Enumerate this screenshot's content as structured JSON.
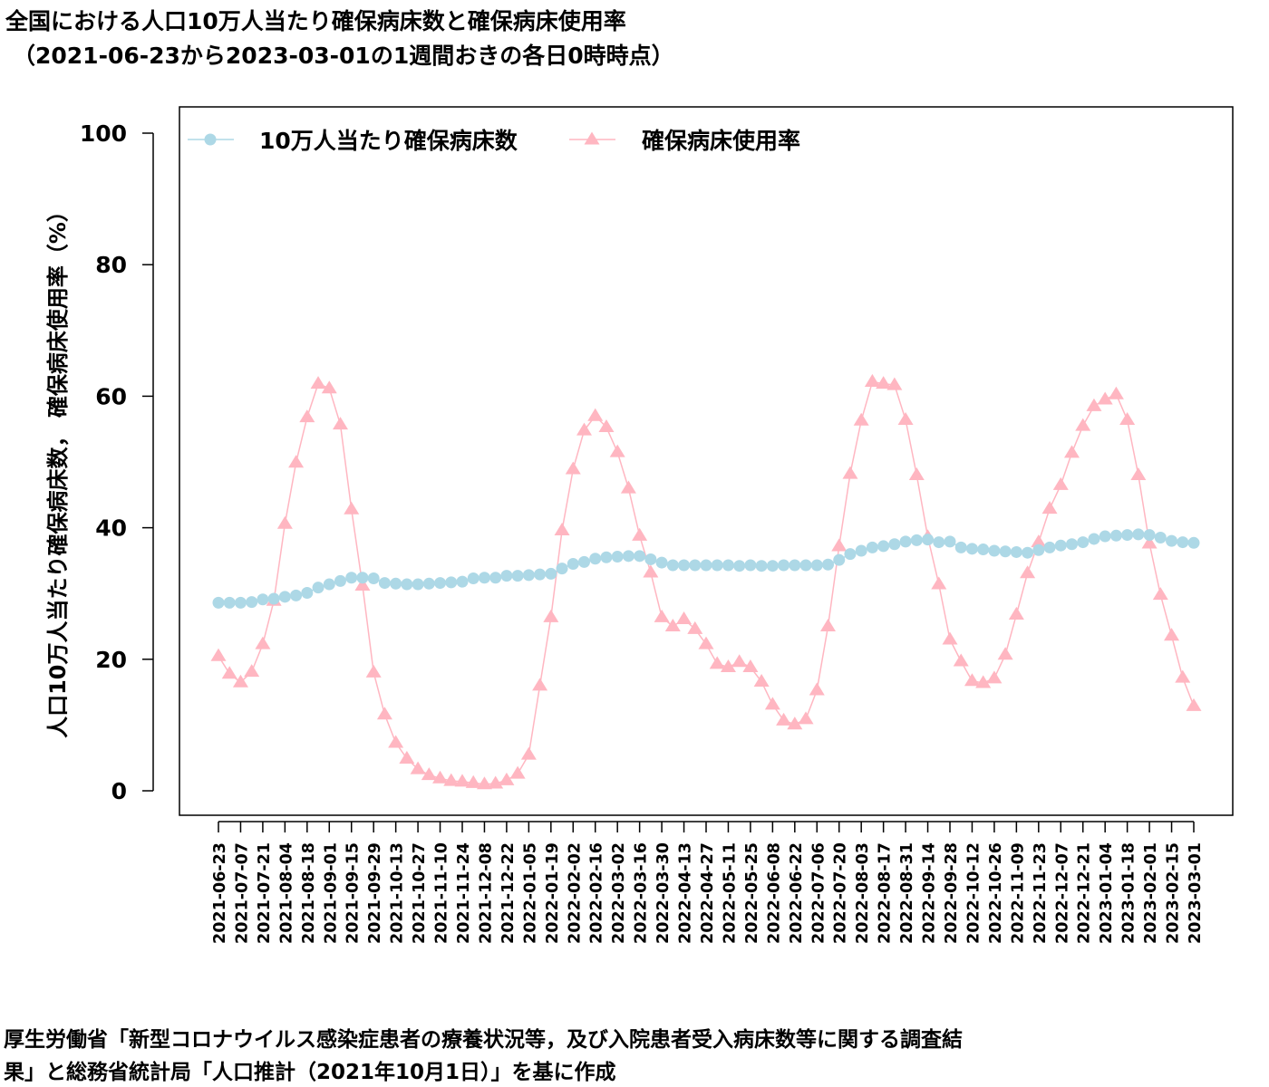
{
  "title": {
    "line1": "全国における人口10万人当たり確保病床数と確保病床使用率",
    "line2": "（2021-06-23から2023-03-01の1週間おきの各日0時時点）"
  },
  "caption": {
    "line1": "厚生労働省「新型コロナウイルス感染症患者の療養状況等，及び入院患者受入病床数等に関する調査結",
    "line2": "果」と総務省統計局「人口推計（2021年10月1日）」を基に作成"
  },
  "chart_data": {
    "type": "line",
    "ylabel": "人口10万人当たり確保病床数，  確保病床使用率（%）",
    "xlabel": "",
    "ylim": [
      0,
      100
    ],
    "yticks": [
      0,
      20,
      40,
      60,
      80,
      100
    ],
    "grid": false,
    "legend_position": "top-left",
    "x": [
      "2021-06-23",
      "2021-06-30",
      "2021-07-07",
      "2021-07-14",
      "2021-07-21",
      "2021-07-28",
      "2021-08-04",
      "2021-08-11",
      "2021-08-18",
      "2021-08-25",
      "2021-09-01",
      "2021-09-08",
      "2021-09-15",
      "2021-09-22",
      "2021-09-29",
      "2021-10-06",
      "2021-10-13",
      "2021-10-20",
      "2021-10-27",
      "2021-11-03",
      "2021-11-10",
      "2021-11-17",
      "2021-11-24",
      "2021-12-01",
      "2021-12-08",
      "2021-12-15",
      "2021-12-22",
      "2021-12-29",
      "2022-01-05",
      "2022-01-12",
      "2022-01-19",
      "2022-01-26",
      "2022-02-02",
      "2022-02-09",
      "2022-02-16",
      "2022-02-23",
      "2022-03-02",
      "2022-03-09",
      "2022-03-16",
      "2022-03-23",
      "2022-03-30",
      "2022-04-06",
      "2022-04-13",
      "2022-04-20",
      "2022-04-27",
      "2022-05-04",
      "2022-05-11",
      "2022-05-18",
      "2022-05-25",
      "2022-06-01",
      "2022-06-08",
      "2022-06-15",
      "2022-06-22",
      "2022-06-29",
      "2022-07-06",
      "2022-07-13",
      "2022-07-20",
      "2022-07-27",
      "2022-08-03",
      "2022-08-10",
      "2022-08-17",
      "2022-08-24",
      "2022-08-31",
      "2022-09-07",
      "2022-09-14",
      "2022-09-21",
      "2022-09-28",
      "2022-10-05",
      "2022-10-12",
      "2022-10-19",
      "2022-10-26",
      "2022-11-02",
      "2022-11-09",
      "2022-11-16",
      "2022-11-23",
      "2022-11-30",
      "2022-12-07",
      "2022-12-14",
      "2022-12-21",
      "2022-12-28",
      "2023-01-04",
      "2023-01-11",
      "2023-01-18",
      "2023-01-25",
      "2023-02-01",
      "2023-02-08",
      "2023-02-15",
      "2023-02-22",
      "2023-03-01"
    ],
    "xtick_labels": [
      "2021-06-23",
      "2021-07-07",
      "2021-07-21",
      "2021-08-04",
      "2021-08-18",
      "2021-09-01",
      "2021-09-15",
      "2021-09-29",
      "2021-10-13",
      "2021-10-27",
      "2021-11-10",
      "2021-11-24",
      "2021-12-08",
      "2021-12-22",
      "2022-01-05",
      "2022-01-19",
      "2022-02-02",
      "2022-02-16",
      "2022-03-02",
      "2022-03-16",
      "2022-03-30",
      "2022-04-13",
      "2022-04-27",
      "2022-05-11",
      "2022-05-25",
      "2022-06-08",
      "2022-06-22",
      "2022-07-06",
      "2022-07-20",
      "2022-08-03",
      "2022-08-17",
      "2022-08-31",
      "2022-09-14",
      "2022-09-28",
      "2022-10-12",
      "2022-10-26",
      "2022-11-09",
      "2022-11-23",
      "2022-12-07",
      "2022-12-21",
      "2023-01-04",
      "2023-01-18",
      "2023-02-01",
      "2023-02-15",
      "2023-03-01"
    ],
    "series": [
      {
        "name": "10万人当たり確保病床数",
        "color": "#add8e6",
        "marker": "circle",
        "values": [
          28.6,
          28.6,
          28.6,
          28.7,
          29.1,
          29.2,
          29.5,
          29.7,
          30.1,
          30.9,
          31.4,
          31.9,
          32.4,
          32.4,
          32.3,
          31.6,
          31.5,
          31.4,
          31.4,
          31.5,
          31.6,
          31.7,
          31.8,
          32.3,
          32.4,
          32.4,
          32.7,
          32.7,
          32.8,
          32.9,
          33.0,
          33.8,
          34.5,
          34.8,
          35.3,
          35.5,
          35.6,
          35.7,
          35.7,
          35.2,
          34.7,
          34.3,
          34.3,
          34.3,
          34.3,
          34.3,
          34.3,
          34.2,
          34.3,
          34.2,
          34.2,
          34.3,
          34.3,
          34.3,
          34.3,
          34.4,
          35.1,
          36.0,
          36.5,
          37.0,
          37.2,
          37.5,
          37.9,
          38.1,
          38.2,
          37.8,
          37.9,
          37.0,
          36.8,
          36.7,
          36.5,
          36.4,
          36.3,
          36.2,
          36.6,
          37.0,
          37.3,
          37.5,
          37.8,
          38.3,
          38.7,
          38.8,
          38.9,
          39.0,
          38.9,
          38.5,
          38.0,
          37.8,
          37.7
        ]
      },
      {
        "name": "確保病床使用率",
        "color": "#ffb6c1",
        "marker": "triangle",
        "values": [
          20.5,
          17.8,
          16.5,
          18.1,
          22.3,
          28.9,
          40.6,
          49.9,
          56.8,
          61.9,
          61.2,
          55.7,
          42.8,
          31.2,
          18.0,
          11.6,
          7.3,
          4.9,
          3.3,
          2.4,
          1.9,
          1.5,
          1.4,
          1.2,
          1.0,
          1.1,
          1.6,
          2.6,
          5.5,
          16.0,
          26.4,
          39.6,
          48.9,
          54.8,
          57.0,
          55.3,
          51.5,
          46.0,
          38.8,
          33.2,
          26.4,
          25.0,
          26.1,
          24.6,
          22.3,
          19.3,
          18.8,
          19.6,
          18.8,
          16.6,
          13.1,
          10.7,
          10.1,
          10.9,
          15.3,
          25.0,
          37.2,
          48.2,
          56.3,
          62.2,
          61.9,
          61.7,
          56.4,
          48.0,
          38.6,
          31.4,
          23.0,
          19.7,
          16.7,
          16.4,
          17.1,
          20.7,
          26.8,
          33.1,
          37.8,
          42.9,
          46.5,
          51.4,
          55.5,
          58.5,
          59.5,
          60.3,
          56.4,
          48.0,
          37.6,
          29.8,
          23.6,
          17.2,
          12.9
        ]
      }
    ]
  }
}
